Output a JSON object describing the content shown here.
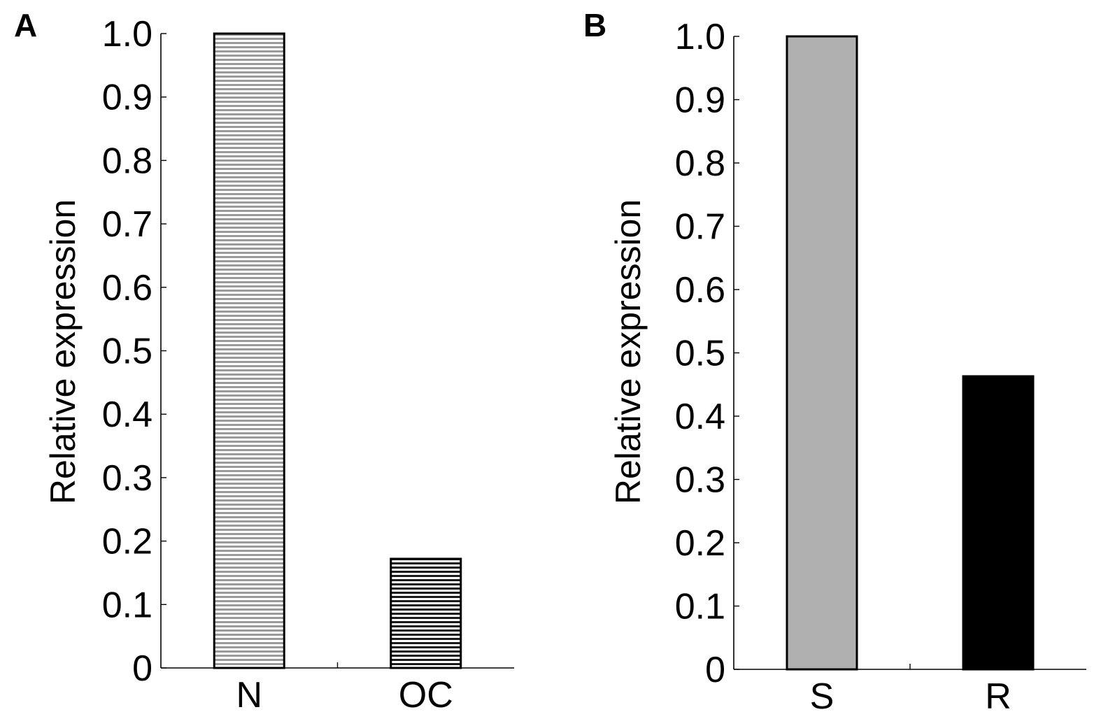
{
  "chart_data": [
    {
      "type": "bar",
      "panel_label": "A",
      "categories": [
        "N",
        "OC"
      ],
      "values": [
        1.0,
        0.172
      ],
      "bar_fills": [
        "hstripe-light",
        "hstripe-dark"
      ],
      "ylabel": "Relative expression",
      "xlabel": "",
      "title": "",
      "ylim": [
        0,
        1.0
      ],
      "yticks": [
        "0",
        "0.1",
        "0.2",
        "0.3",
        "0.4",
        "0.5",
        "0.6",
        "0.7",
        "0.8",
        "0.9",
        "1.0"
      ],
      "grid": false,
      "legend": "none"
    },
    {
      "type": "bar",
      "panel_label": "B",
      "categories": [
        "S",
        "R"
      ],
      "values": [
        1.0,
        0.463
      ],
      "bar_fills": [
        "#b0b0b0",
        "#000000"
      ],
      "ylabel": "Relative expression",
      "xlabel": "",
      "title": "",
      "ylim": [
        0,
        1.0
      ],
      "yticks": [
        "0",
        "0.1",
        "0.2",
        "0.3",
        "0.4",
        "0.5",
        "0.6",
        "0.7",
        "0.8",
        "0.9",
        "1.0"
      ],
      "grid": false,
      "legend": "none"
    }
  ]
}
